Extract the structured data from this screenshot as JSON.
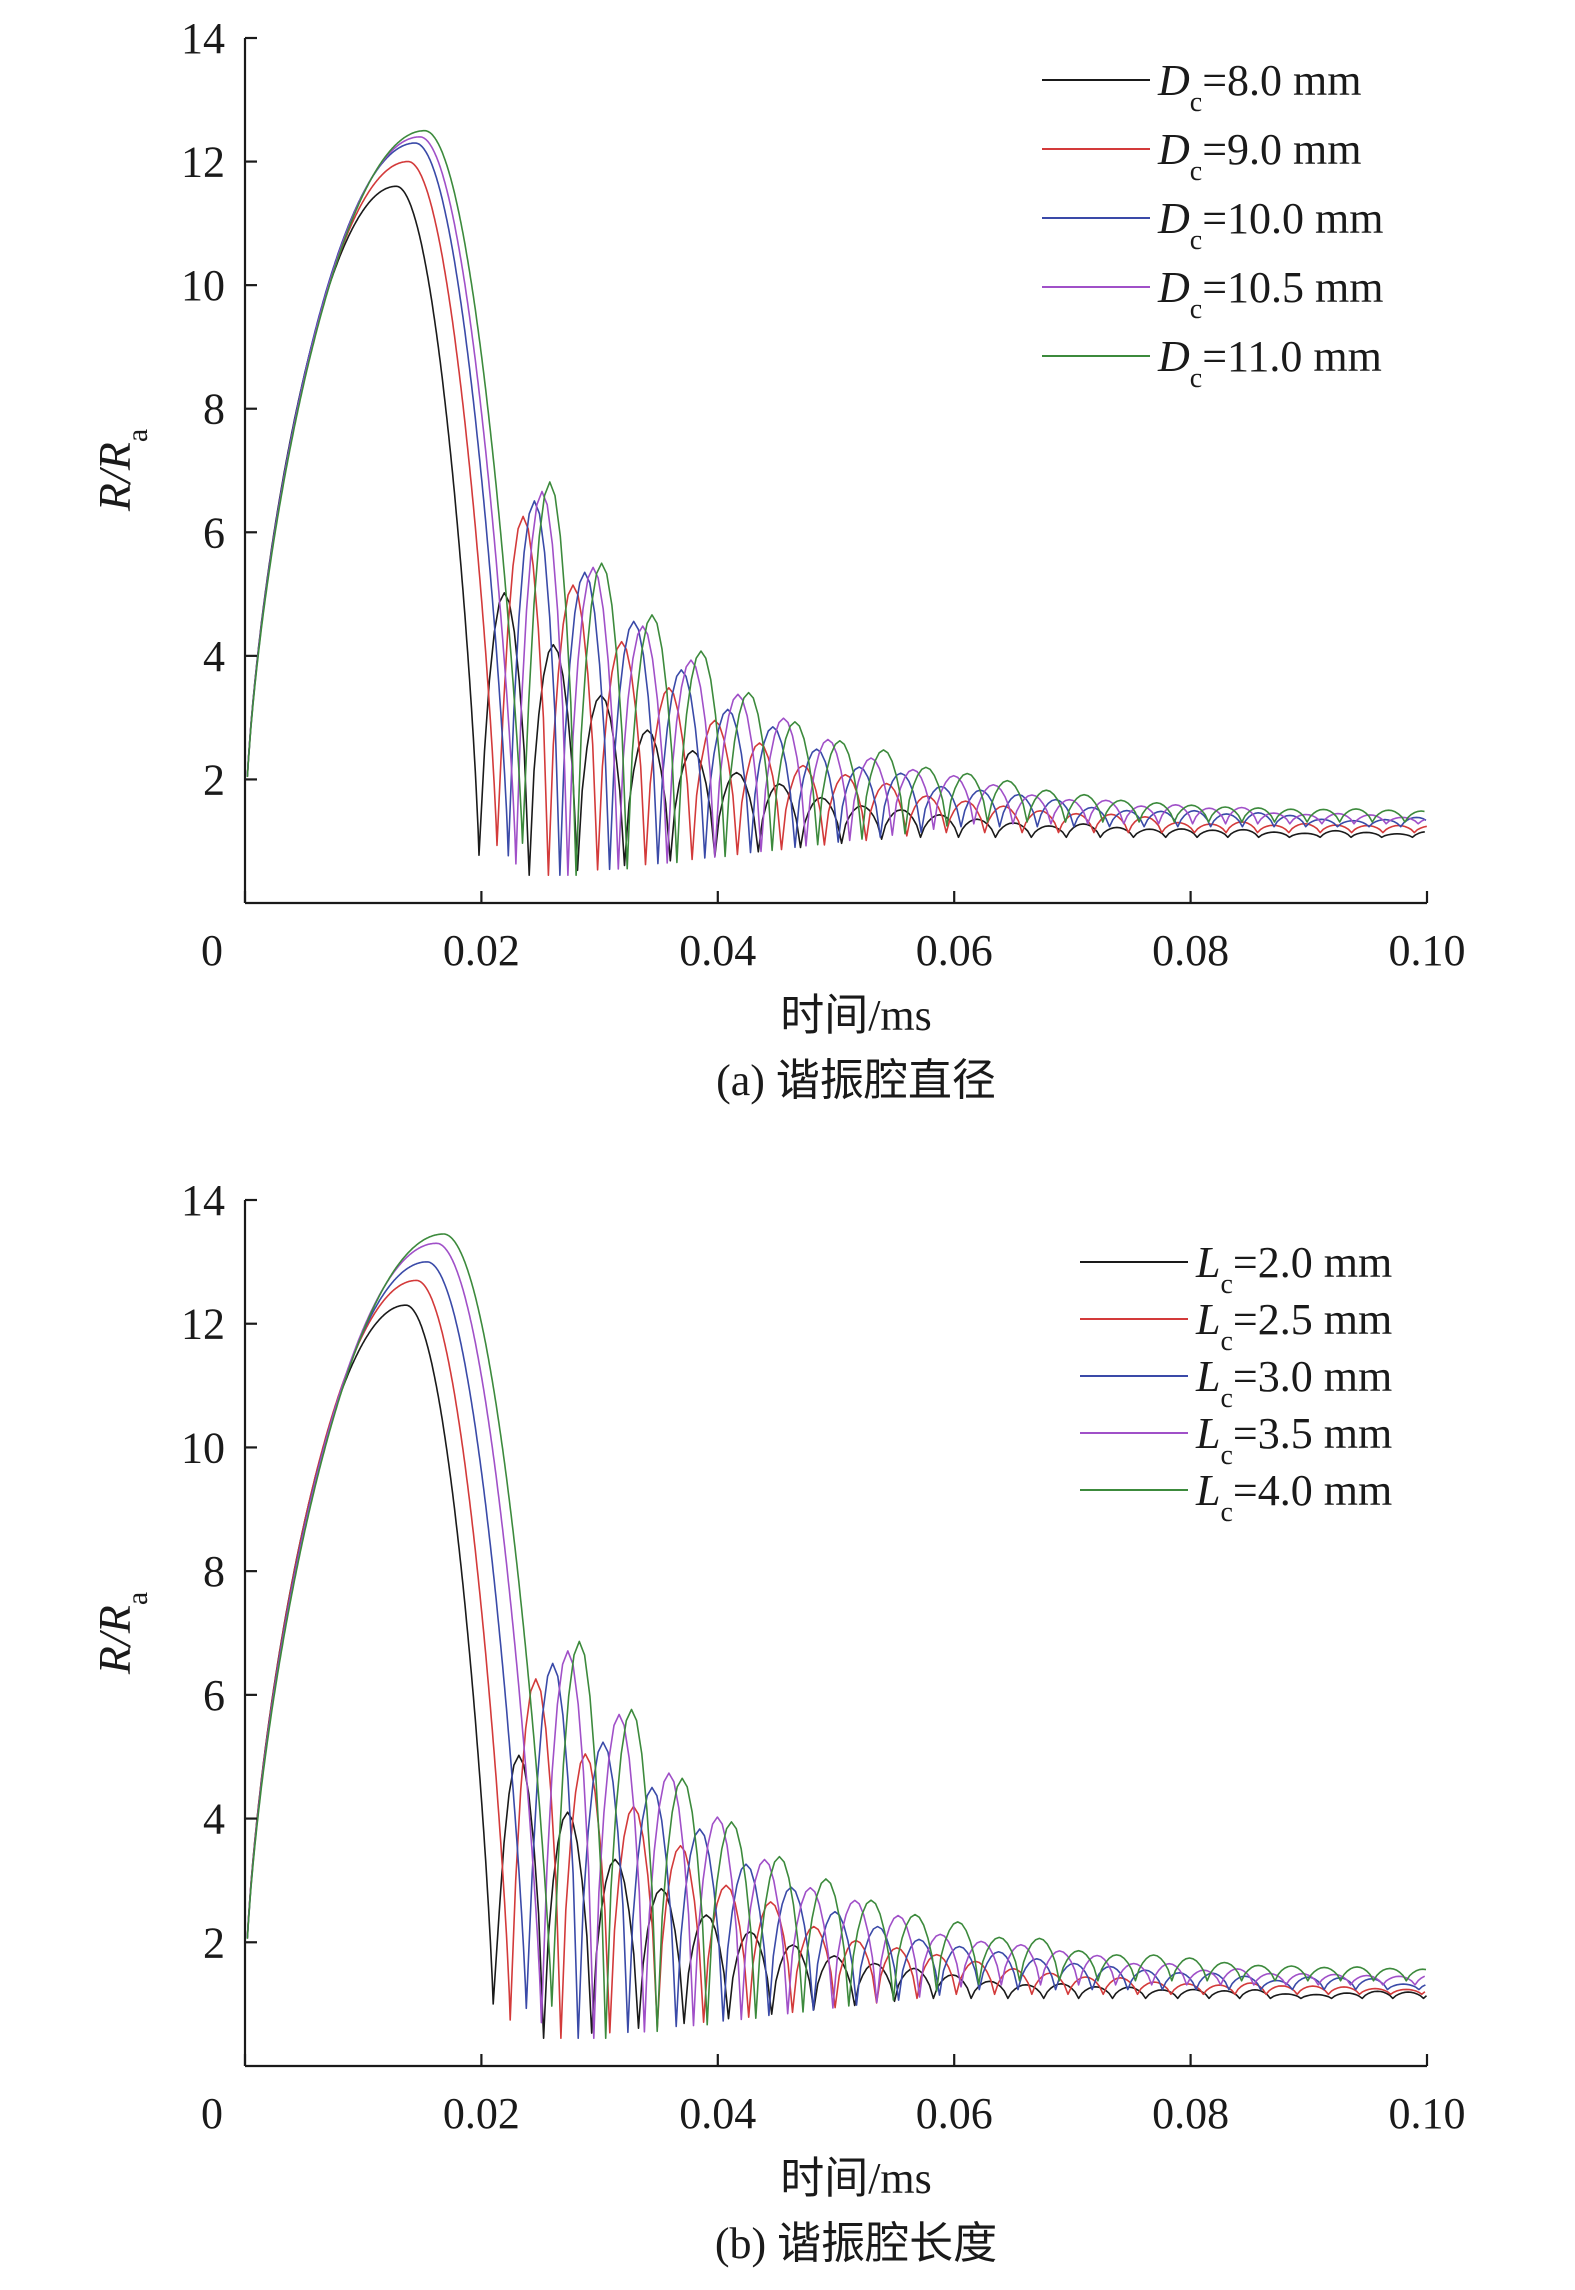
{
  "chart_data": [
    {
      "type": "line",
      "caption": "(a) 谐振腔直径",
      "xlabel": "时间/ms",
      "ylabel": {
        "main": "R/R",
        "sub": "a"
      },
      "xlim": [
        0,
        0.1
      ],
      "ylim": [
        0,
        14
      ],
      "xticks": [
        0,
        0.02,
        0.04,
        0.06,
        0.08,
        0.1
      ],
      "xtick_labels": [
        "0",
        "0.02",
        "0.04",
        "0.06",
        "0.08",
        "0.10"
      ],
      "yticks": [
        2,
        4,
        6,
        8,
        10,
        12,
        14
      ],
      "ytick_labels": [
        "2",
        "4",
        "6",
        "8",
        "10",
        "12",
        "14"
      ],
      "grid": false,
      "legend_position": "top-right",
      "legend_symbol": "D",
      "legend_sub": "c",
      "series": [
        {
          "name": "=8.0 mm",
          "color": "#1a1a1a",
          "peak_time": 0.0128,
          "peak": 11.6,
          "period": 0.0042,
          "second_peak": 5.1,
          "decay": 0.032,
          "final": 1.12
        },
        {
          "name": "=9.0 mm",
          "color": "#d33a3a",
          "peak_time": 0.0138,
          "peak": 12.0,
          "period": 0.00428,
          "second_peak": 6.35,
          "decay": 0.034,
          "final": 1.2
        },
        {
          "name": "=10.0 mm",
          "color": "#3a4aa8",
          "peak_time": 0.0144,
          "peak": 12.3,
          "period": 0.00432,
          "second_peak": 6.6,
          "decay": 0.036,
          "final": 1.3
        },
        {
          "name": "=10.5 mm",
          "color": "#a050c8",
          "peak_time": 0.0148,
          "peak": 12.4,
          "period": 0.00438,
          "second_peak": 6.75,
          "decay": 0.037,
          "final": 1.35
        },
        {
          "name": "=11.0 mm",
          "color": "#3c8a3c",
          "peak_time": 0.0152,
          "peak": 12.5,
          "period": 0.00445,
          "second_peak": 6.9,
          "decay": 0.038,
          "final": 1.38
        }
      ]
    },
    {
      "type": "line",
      "caption": "(b) 谐振腔长度",
      "xlabel": "时间/ms",
      "ylabel": {
        "main": "R/R",
        "sub": "a"
      },
      "xlim": [
        0,
        0.1
      ],
      "ylim": [
        0,
        14
      ],
      "xticks": [
        0,
        0.02,
        0.04,
        0.06,
        0.08,
        0.1
      ],
      "xtick_labels": [
        "0",
        "0.02",
        "0.04",
        "0.06",
        "0.08",
        "0.10"
      ],
      "yticks": [
        2,
        4,
        6,
        8,
        10,
        12,
        14
      ],
      "ytick_labels": [
        "2",
        "4",
        "6",
        "8",
        "10",
        "12",
        "14"
      ],
      "grid": false,
      "legend_position": "top-right",
      "legend_symbol": "L",
      "legend_sub": "c",
      "series": [
        {
          "name": "=2.0 mm",
          "color": "#1a1a1a",
          "peak_time": 0.0136,
          "peak": 12.3,
          "period": 0.00418,
          "second_peak": 5.1,
          "decay": 0.032,
          "final": 1.15
        },
        {
          "name": "=2.5 mm",
          "color": "#d33a3a",
          "peak_time": 0.0145,
          "peak": 12.7,
          "period": 0.00425,
          "second_peak": 6.35,
          "decay": 0.034,
          "final": 1.22
        },
        {
          "name": "=3.0 mm",
          "color": "#3a4aa8",
          "peak_time": 0.0154,
          "peak": 13.0,
          "period": 0.00432,
          "second_peak": 6.6,
          "decay": 0.036,
          "final": 1.3
        },
        {
          "name": "=3.5 mm",
          "color": "#a050c8",
          "peak_time": 0.0162,
          "peak": 13.3,
          "period": 0.0044,
          "second_peak": 6.8,
          "decay": 0.037,
          "final": 1.38
        },
        {
          "name": "=4.0 mm",
          "color": "#3c8a3c",
          "peak_time": 0.0168,
          "peak": 13.45,
          "period": 0.00448,
          "second_peak": 6.95,
          "decay": 0.038,
          "final": 1.45
        }
      ]
    }
  ]
}
